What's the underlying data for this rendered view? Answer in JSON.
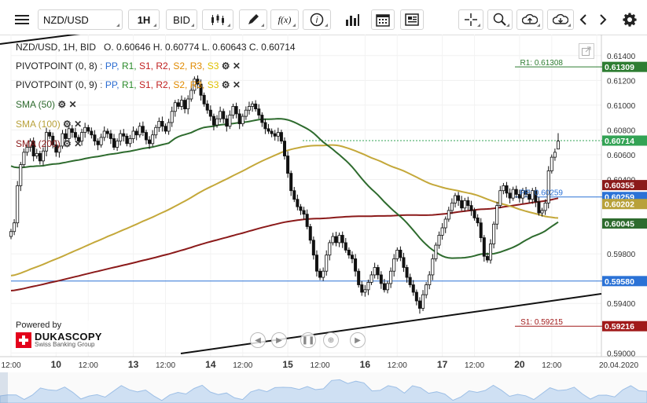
{
  "toolbar": {
    "menu_icon": "hamburger-icon",
    "symbol": "NZD/USD",
    "period": "1H",
    "side": "BID",
    "chart_type_icon": "candlestick-icon",
    "draw_icon": "pencil-icon",
    "indicator_label": "f(x)",
    "info_icon": "info-icon",
    "volume_icon": "bars-icon",
    "calendar_icon": "calendar-icon",
    "news_icon": "newspaper-icon",
    "cursor_icon": "crosshair-icon",
    "zoom_icon": "zoom-icon",
    "upload_icon": "cloud-upload-icon",
    "download_icon": "cloud-download-icon",
    "back_icon": "chevron-left-icon",
    "forward_icon": "chevron-right-icon",
    "settings_icon": "gear-icon"
  },
  "legend": {
    "ohlc_line": "NZD/USD, 1H, BID   O. 0.60646 H. 0.60774 L. 0.60643 C. 0.60714",
    "pivot1_name": "PIVOTPOINT (0, 8)",
    "pivot2_name": "PIVOTPOINT (0, 9)",
    "pivot_series": [
      {
        "text": "PP,",
        "color": "#2b6cd1"
      },
      {
        "text": "R1,",
        "color": "#2a8a2a"
      },
      {
        "text": "S1,",
        "color": "#c02020"
      },
      {
        "text": "R2,",
        "color": "#c02020"
      },
      {
        "text": "S2,",
        "color": "#e08a00"
      },
      {
        "text": "R3,",
        "color": "#e08a00"
      },
      {
        "text": "S3",
        "color": "#e0c000"
      }
    ],
    "sma50": "SMA (50)",
    "sma100": "SMA (100)",
    "sma200": "SMA (200)"
  },
  "branding": {
    "powered_by": "Powered by",
    "logo_name": "DUKASCOPY",
    "logo_sub": "Swiss Banking Group"
  },
  "line_labels": {
    "r1": "R1: 0.61308",
    "pp": "PP: 0.60259",
    "s1": "S1: 0.59215"
  },
  "price_labels": [
    {
      "text": "0.61309",
      "value": 0.61309,
      "color": "#2e7d32",
      "kind": "r1"
    },
    {
      "text": "0.60714",
      "value": 0.60714,
      "color": "#33a355",
      "kind": "last"
    },
    {
      "text": "0.60355",
      "value": 0.60355,
      "color": "#8b1a1a",
      "kind": "sma200"
    },
    {
      "text": "0.60259",
      "value": 0.60259,
      "color": "#2b72d6",
      "kind": "pp"
    },
    {
      "text": "0.60202",
      "value": 0.60202,
      "color": "#b8a13a",
      "kind": "sma100"
    },
    {
      "text": "0.60045",
      "value": 0.60045,
      "color": "#2e6b2e",
      "kind": "sma50"
    },
    {
      "text": "0.59580",
      "value": 0.5958,
      "color": "#2b72d6",
      "kind": "hline"
    },
    {
      "text": "0.59216",
      "value": 0.59216,
      "color": "#a11a1a",
      "kind": "s1"
    }
  ],
  "chart_data": {
    "type": "candlestick",
    "title": "NZD/USD, 1H, BID",
    "ohlc_last": {
      "open": 0.60646,
      "high": 0.60774,
      "low": 0.60643,
      "close": 0.60714
    },
    "y_ticks": [
      "0.61400",
      "0.61200",
      "0.61000",
      "0.60800",
      "0.60600",
      "0.60400",
      "0.59800",
      "0.59400",
      "0.59000"
    ],
    "y_tick_values": [
      0.614,
      0.612,
      0.61,
      0.608,
      0.606,
      0.604,
      0.598,
      0.594,
      0.59
    ],
    "ylim": [
      0.5897,
      0.6157
    ],
    "x_ticks": [
      "12:00",
      "10",
      "12:00",
      "13",
      "12:00",
      "14",
      "12:00",
      "15",
      "12:00",
      "16",
      "12:00",
      "17",
      "12:00",
      "20",
      "12:00",
      "20.04.2020"
    ],
    "x_tick_bold": [
      false,
      true,
      false,
      true,
      false,
      true,
      false,
      true,
      false,
      true,
      false,
      true,
      false,
      true,
      false,
      false
    ],
    "x_tick_index": [
      0,
      14,
      24,
      38,
      48,
      62,
      72,
      86,
      96,
      110,
      120,
      134,
      144,
      158,
      168,
      182
    ],
    "closes": [
      0.5998,
      0.6005,
      0.6035,
      0.6052,
      0.6062,
      0.6066,
      0.6071,
      0.6059,
      0.6061,
      0.6055,
      0.6063,
      0.6078,
      0.6075,
      0.6068,
      0.6062,
      0.6067,
      0.6077,
      0.6073,
      0.6081,
      0.6078,
      0.6074,
      0.6071,
      0.6078,
      0.6082,
      0.6079,
      0.6076,
      0.6071,
      0.6068,
      0.6074,
      0.6079,
      0.6077,
      0.6073,
      0.6066,
      0.6071,
      0.6077,
      0.6075,
      0.6069,
      0.6073,
      0.6079,
      0.6076,
      0.6083,
      0.6078,
      0.6072,
      0.6069,
      0.6076,
      0.6082,
      0.6087,
      0.6083,
      0.6079,
      0.6086,
      0.6095,
      0.6102,
      0.6099,
      0.6104,
      0.6097,
      0.6105,
      0.6112,
      0.6121,
      0.6117,
      0.6108,
      0.6101,
      0.6096,
      0.6091,
      0.6084,
      0.6089,
      0.6095,
      0.6089,
      0.6083,
      0.6092,
      0.6099,
      0.6093,
      0.6085,
      0.6091,
      0.6096,
      0.6099,
      0.6101,
      0.6097,
      0.6092,
      0.6086,
      0.6081,
      0.6079,
      0.6077,
      0.6075,
      0.6078,
      0.6071,
      0.6059,
      0.6045,
      0.6031,
      0.6024,
      0.6018,
      0.6015,
      0.6012,
      0.6002,
      0.5991,
      0.5979,
      0.5966,
      0.5961,
      0.5966,
      0.5979,
      0.5989,
      0.5994,
      0.5989,
      0.5995,
      0.5989,
      0.5983,
      0.5979,
      0.5976,
      0.5966,
      0.5955,
      0.5949,
      0.5951,
      0.5957,
      0.5963,
      0.5969,
      0.5963,
      0.5956,
      0.5951,
      0.5956,
      0.5966,
      0.5976,
      0.5983,
      0.5977,
      0.5969,
      0.5961,
      0.5955,
      0.5949,
      0.5942,
      0.5936,
      0.5947,
      0.5955,
      0.5963,
      0.5976,
      0.5987,
      0.5995,
      0.6001,
      0.6008,
      0.6015,
      0.6021,
      0.6027,
      0.6023,
      0.6017,
      0.6023,
      0.6019,
      0.6015,
      0.6009,
      0.6005,
      0.5993,
      0.5978,
      0.5975,
      0.5988,
      0.6004,
      0.6019,
      0.6031,
      0.6035,
      0.6029,
      0.6025,
      0.6032,
      0.6028,
      0.6025,
      0.6031,
      0.6028,
      0.6024,
      0.6031,
      0.6022,
      0.6013,
      0.6015,
      0.6021,
      0.6047,
      0.6058,
      0.6062,
      0.6071
    ]
  },
  "navigator_icons": [
    "rewind-icon",
    "play-icon",
    "pause-icon",
    "zoom-in-icon",
    "forward-icon"
  ]
}
